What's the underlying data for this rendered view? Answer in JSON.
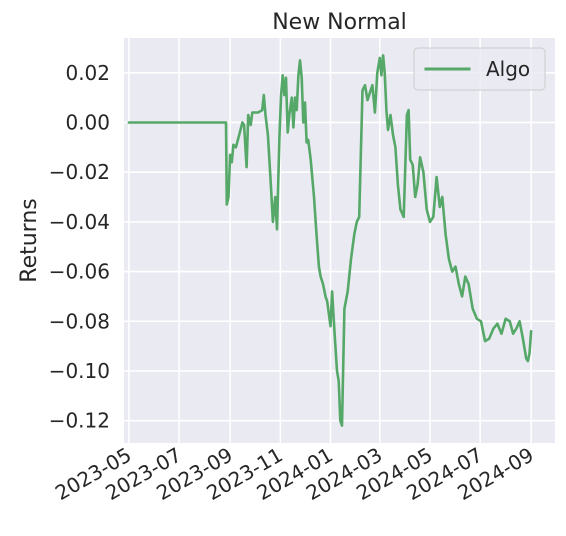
{
  "chart_data": {
    "type": "line",
    "title": "New Normal",
    "xlabel": "",
    "ylabel": "Returns",
    "x_ticks": [
      "2023-05",
      "2023-07",
      "2023-09",
      "2023-11",
      "2024-01",
      "2024-03",
      "2024-05",
      "2024-07",
      "2024-09"
    ],
    "y_ticks": [
      0.02,
      0.0,
      -0.02,
      -0.04,
      -0.06,
      -0.08,
      -0.1,
      -0.12
    ],
    "y_tick_labels": [
      "0.02",
      "0.00",
      "−0.02",
      "−0.04",
      "−0.06",
      "−0.08",
      "−0.10",
      "−0.12"
    ],
    "xlim": [
      "2023-04-25",
      "2024-09-30"
    ],
    "ylim": [
      -0.129,
      0.034
    ],
    "grid": true,
    "legend": {
      "placement": "top-right"
    },
    "series": [
      {
        "name": "Algo",
        "color": "#55a868",
        "points": [
          [
            "2023-05-01",
            0.0
          ],
          [
            "2023-06-01",
            0.0
          ],
          [
            "2023-07-01",
            0.0
          ],
          [
            "2023-08-01",
            0.0
          ],
          [
            "2023-08-27",
            0.0
          ],
          [
            "2023-08-28",
            -0.033
          ],
          [
            "2023-08-30",
            -0.03
          ],
          [
            "2023-09-01",
            -0.013
          ],
          [
            "2023-09-03",
            -0.016
          ],
          [
            "2023-09-05",
            -0.009
          ],
          [
            "2023-09-08",
            -0.01
          ],
          [
            "2023-09-12",
            -0.005
          ],
          [
            "2023-09-16",
            0.0
          ],
          [
            "2023-09-18",
            -0.001
          ],
          [
            "2023-09-21",
            -0.018
          ],
          [
            "2023-09-23",
            0.003
          ],
          [
            "2023-09-26",
            -0.001
          ],
          [
            "2023-09-28",
            0.004
          ],
          [
            "2023-10-05",
            0.004
          ],
          [
            "2023-10-10",
            0.005
          ],
          [
            "2023-10-12",
            0.011
          ],
          [
            "2023-10-14",
            0.003
          ],
          [
            "2023-10-17",
            -0.005
          ],
          [
            "2023-10-20",
            -0.022
          ],
          [
            "2023-10-23",
            -0.04
          ],
          [
            "2023-10-26",
            -0.03
          ],
          [
            "2023-10-28",
            -0.043
          ],
          [
            "2023-10-31",
            -0.005
          ],
          [
            "2023-11-02",
            0.011
          ],
          [
            "2023-11-04",
            0.019
          ],
          [
            "2023-11-06",
            0.011
          ],
          [
            "2023-11-08",
            0.018
          ],
          [
            "2023-11-10",
            -0.004
          ],
          [
            "2023-11-12",
            0.003
          ],
          [
            "2023-11-15",
            0.01
          ],
          [
            "2023-11-17",
            -0.002
          ],
          [
            "2023-11-19",
            0.01
          ],
          [
            "2023-11-21",
            0.005
          ],
          [
            "2023-11-23",
            0.019
          ],
          [
            "2023-11-25",
            0.025
          ],
          [
            "2023-11-27",
            0.018
          ],
          [
            "2023-11-29",
            0.0
          ],
          [
            "2023-12-01",
            0.008
          ],
          [
            "2023-12-03",
            -0.008
          ],
          [
            "2023-12-05",
            -0.007
          ],
          [
            "2023-12-08",
            -0.015
          ],
          [
            "2023-12-12",
            -0.03
          ],
          [
            "2023-12-15",
            -0.045
          ],
          [
            "2023-12-18",
            -0.058
          ],
          [
            "2023-12-20",
            -0.062
          ],
          [
            "2023-12-23",
            -0.065
          ],
          [
            "2023-12-26",
            -0.07
          ],
          [
            "2023-12-28",
            -0.072
          ],
          [
            "2024-01-01",
            -0.082
          ],
          [
            "2024-01-03",
            -0.068
          ],
          [
            "2024-01-06",
            -0.085
          ],
          [
            "2024-01-09",
            -0.1
          ],
          [
            "2024-01-11",
            -0.104
          ],
          [
            "2024-01-13",
            -0.12
          ],
          [
            "2024-01-15",
            -0.122
          ],
          [
            "2024-01-18",
            -0.075
          ],
          [
            "2024-01-22",
            -0.068
          ],
          [
            "2024-01-26",
            -0.055
          ],
          [
            "2024-01-30",
            -0.045
          ],
          [
            "2024-02-02",
            -0.04
          ],
          [
            "2024-02-05",
            -0.038
          ],
          [
            "2024-02-09",
            0.013
          ],
          [
            "2024-02-12",
            0.015
          ],
          [
            "2024-02-15",
            0.009
          ],
          [
            "2024-02-18",
            0.012
          ],
          [
            "2024-02-21",
            0.015
          ],
          [
            "2024-02-24",
            0.004
          ],
          [
            "2024-02-27",
            0.02
          ],
          [
            "2024-03-01",
            0.026
          ],
          [
            "2024-03-03",
            0.019
          ],
          [
            "2024-03-05",
            0.027
          ],
          [
            "2024-03-07",
            0.02
          ],
          [
            "2024-03-09",
            0.005
          ],
          [
            "2024-03-11",
            -0.003
          ],
          [
            "2024-03-14",
            0.003
          ],
          [
            "2024-03-17",
            -0.005
          ],
          [
            "2024-03-20",
            -0.01
          ],
          [
            "2024-03-23",
            -0.025
          ],
          [
            "2024-03-26",
            -0.035
          ],
          [
            "2024-03-30",
            -0.038
          ],
          [
            "2024-04-03",
            0.003
          ],
          [
            "2024-04-05",
            0.005
          ],
          [
            "2024-04-07",
            -0.015
          ],
          [
            "2024-04-10",
            -0.017
          ],
          [
            "2024-04-13",
            -0.03
          ],
          [
            "2024-04-16",
            -0.025
          ],
          [
            "2024-04-19",
            -0.014
          ],
          [
            "2024-04-23",
            -0.02
          ],
          [
            "2024-04-27",
            -0.035
          ],
          [
            "2024-05-01",
            -0.04
          ],
          [
            "2024-05-05",
            -0.038
          ],
          [
            "2024-05-09",
            -0.022
          ],
          [
            "2024-05-13",
            -0.034
          ],
          [
            "2024-05-16",
            -0.03
          ],
          [
            "2024-05-20",
            -0.045
          ],
          [
            "2024-05-24",
            -0.055
          ],
          [
            "2024-05-28",
            -0.06
          ],
          [
            "2024-06-01",
            -0.058
          ],
          [
            "2024-06-05",
            -0.065
          ],
          [
            "2024-06-09",
            -0.07
          ],
          [
            "2024-06-13",
            -0.062
          ],
          [
            "2024-06-17",
            -0.065
          ],
          [
            "2024-06-22",
            -0.075
          ],
          [
            "2024-06-27",
            -0.079
          ],
          [
            "2024-07-02",
            -0.08
          ],
          [
            "2024-07-07",
            -0.088
          ],
          [
            "2024-07-12",
            -0.087
          ],
          [
            "2024-07-17",
            -0.083
          ],
          [
            "2024-07-22",
            -0.081
          ],
          [
            "2024-07-27",
            -0.085
          ],
          [
            "2024-08-01",
            -0.079
          ],
          [
            "2024-08-06",
            -0.08
          ],
          [
            "2024-08-10",
            -0.085
          ],
          [
            "2024-08-14",
            -0.083
          ],
          [
            "2024-08-18",
            -0.08
          ],
          [
            "2024-08-22",
            -0.087
          ],
          [
            "2024-08-26",
            -0.095
          ],
          [
            "2024-08-28",
            -0.096
          ],
          [
            "2024-08-30",
            -0.093
          ],
          [
            "2024-09-01",
            -0.084
          ]
        ]
      }
    ]
  }
}
